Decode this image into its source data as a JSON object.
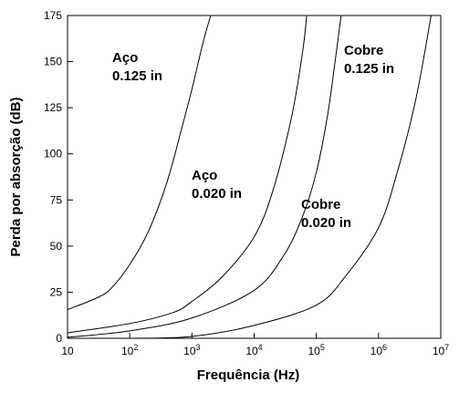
{
  "chart_data": {
    "type": "line",
    "xlabel": "Frequência (Hz)",
    "ylabel": "Perda por absorção (dB)",
    "xscale": "log",
    "xlim": [
      10,
      10000000
    ],
    "ylim": [
      0,
      175
    ],
    "grid": false,
    "x_ticks": [
      {
        "value": 10,
        "base": "10",
        "exp": ""
      },
      {
        "value": 100,
        "base": "10",
        "exp": "2"
      },
      {
        "value": 1000,
        "base": "10",
        "exp": "3"
      },
      {
        "value": 10000,
        "base": "10",
        "exp": "4"
      },
      {
        "value": 100000,
        "base": "10",
        "exp": "5"
      },
      {
        "value": 1000000,
        "base": "10",
        "exp": "6"
      },
      {
        "value": 10000000,
        "base": "10",
        "exp": "7"
      }
    ],
    "y_ticks": [
      {
        "value": 0,
        "label": "0"
      },
      {
        "value": 25,
        "label": "25"
      },
      {
        "value": 50,
        "label": "50"
      },
      {
        "value": 75,
        "label": "75"
      },
      {
        "value": 100,
        "label": "100"
      },
      {
        "value": 125,
        "label": "125"
      },
      {
        "value": 150,
        "label": "150"
      },
      {
        "value": 175,
        "label": "175"
      }
    ],
    "series": [
      {
        "label_lines": [
          "Aço",
          "0.125 in"
        ],
        "points": [
          [
            10,
            15.5
          ],
          [
            30,
            22
          ],
          [
            50,
            27
          ],
          [
            100,
            40
          ],
          [
            200,
            58
          ],
          [
            400,
            85
          ],
          [
            700,
            115
          ],
          [
            1000,
            135
          ],
          [
            1500,
            160
          ],
          [
            2000,
            175
          ]
        ]
      },
      {
        "label_lines": [
          "Aço",
          "0.020 in"
        ],
        "points": [
          [
            10,
            3
          ],
          [
            100,
            8
          ],
          [
            500,
            14
          ],
          [
            1000,
            20
          ],
          [
            3000,
            33
          ],
          [
            10000,
            55
          ],
          [
            20000,
            80
          ],
          [
            40000,
            120
          ],
          [
            60000,
            155
          ],
          [
            70000,
            175
          ]
        ]
      },
      {
        "label_lines": [
          "Cobre",
          "0.125 in"
        ],
        "points": [
          [
            10,
            0.5
          ],
          [
            100,
            4
          ],
          [
            1000,
            11
          ],
          [
            10000,
            26
          ],
          [
            30000,
            45
          ],
          [
            60000,
            66
          ],
          [
            100000,
            90
          ],
          [
            150000,
            120
          ],
          [
            200000,
            150
          ],
          [
            250000,
            175
          ]
        ]
      },
      {
        "label_lines": [
          "Cobre",
          "0.020 in"
        ],
        "points": [
          [
            100,
            0
          ],
          [
            1000,
            1
          ],
          [
            10000,
            7
          ],
          [
            100000,
            18
          ],
          [
            300000,
            34
          ],
          [
            1000000,
            60
          ],
          [
            2000000,
            90
          ],
          [
            4000000,
            130
          ],
          [
            7000000,
            175
          ]
        ]
      }
    ]
  }
}
